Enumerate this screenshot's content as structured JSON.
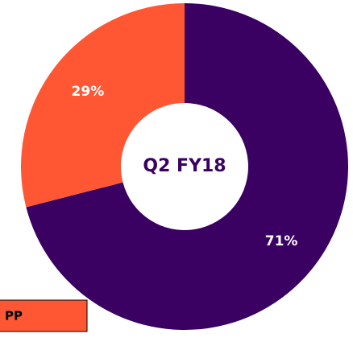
{
  "chart_data": {
    "type": "donut",
    "center_label": "Q2 FY18",
    "values": [
      71,
      29
    ],
    "value_labels": [
      "71%",
      "29%"
    ],
    "colors": [
      "#3a0062",
      "#ff5733"
    ],
    "annotation": "PP"
  }
}
